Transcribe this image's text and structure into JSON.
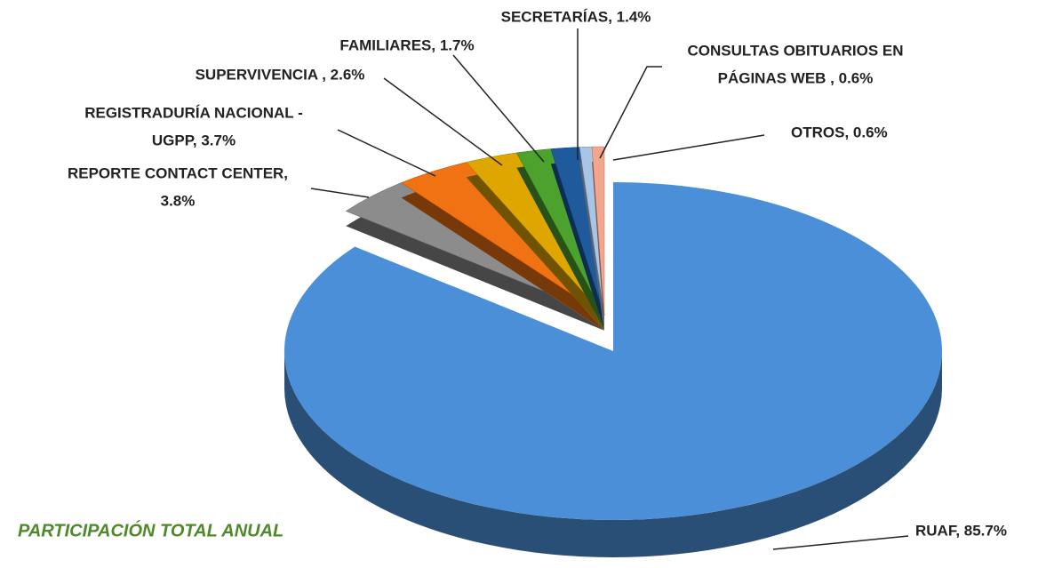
{
  "chart_data": {
    "type": "pie3d",
    "title": "PARTICIPACIÓN  TOTAL ANUAL",
    "values": [
      85.7,
      3.8,
      3.7,
      2.6,
      1.7,
      1.4,
      0.6,
      0.6
    ],
    "value_labels": [
      [
        "RUAF, 85.7%"
      ],
      [
        "REPORTE CONTACT CENTER,",
        "3.8%"
      ],
      [
        "REGISTRADURÍA NACIONAL -",
        "UGPP, 3.7%"
      ],
      [
        "SUPERVIVENCIA , 2.6%"
      ],
      [
        "FAMILIARES, 1.7%"
      ],
      [
        "SECRETARÍAS, 1.4%"
      ],
      [
        "CONSULTAS OBITUARIOS EN",
        "PÁGINAS WEB , 0.6%"
      ],
      [
        "OTROS, 0.6%"
      ]
    ],
    "colors": [
      "#4a8fd8",
      "#8c8c8c",
      "#f07212",
      "#e0a600",
      "#4da22e",
      "#1e5a9c",
      "#a9c5e6",
      "#f2a68e"
    ]
  }
}
